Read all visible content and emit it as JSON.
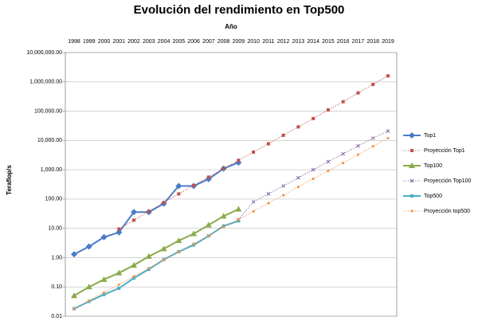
{
  "chart_data": {
    "type": "line",
    "title": "Evolución del rendimiento en Top500",
    "x_label": "Año",
    "y_label": "Teraflop/s",
    "categories": [
      "1998",
      "1999",
      "2000",
      "2001",
      "2002",
      "2003",
      "2004",
      "2005",
      "2006",
      "2007",
      "2008",
      "2009",
      "2010",
      "2011",
      "2012",
      "2013",
      "2014",
      "2015",
      "2016",
      "2017",
      "2018",
      "2019"
    ],
    "log_scale": true,
    "grid": true,
    "legend": "right",
    "ylim": [
      0.01,
      10000000
    ],
    "yticks": [
      0.01,
      {
        "value": 0.1,
        "label": "0.10"
      },
      {
        "value": 1,
        "label": "1.00"
      },
      {
        "value": 10,
        "label": "10.00"
      },
      {
        "value": 100,
        "label": "100.00"
      },
      {
        "value": 1000,
        "label": "1,000.00"
      },
      {
        "value": 10000,
        "label": "10,000.00"
      },
      {
        "value": 100000,
        "label": "100,000.00"
      },
      {
        "value": 1000000,
        "label": "1,000,000.00"
      },
      {
        "value": 10000000,
        "label": "10,000,000.00"
      }
    ],
    "series": [
      {
        "name": "Top1",
        "color": "#4a7bc8",
        "marker": "diamond",
        "dashed": false,
        "values": [
          1.3,
          2.4,
          5,
          7.3,
          36,
          36,
          70,
          280,
          280,
          480,
          1100,
          1760,
          null,
          null,
          null,
          null,
          null,
          null,
          null,
          null,
          null,
          null
        ]
      },
      {
        "name": "Proyección Top1",
        "color": "#c0504d",
        "marker": "square",
        "dashed": true,
        "values": [
          null,
          null,
          null,
          9.5,
          19,
          38,
          75,
          150,
          290,
          560,
          1100,
          2100,
          4000,
          7700,
          15000,
          29000,
          56000,
          110000,
          210000,
          420000,
          820000,
          1600000
        ]
      },
      {
        "name": "Top100",
        "color": "#8aaa4a",
        "marker": "triangle",
        "dashed": false,
        "values": [
          0.05,
          0.1,
          0.18,
          0.3,
          0.55,
          1.1,
          2,
          3.8,
          6.5,
          13,
          26,
          45,
          null,
          null,
          null,
          null,
          null,
          null,
          null,
          null,
          null,
          null
        ]
      },
      {
        "name": "Proyección Top100",
        "color": "#8064a2",
        "marker": "cross",
        "dashed": true,
        "values": [
          null,
          null,
          null,
          null,
          null,
          null,
          null,
          null,
          null,
          null,
          null,
          20,
          80,
          150,
          280,
          530,
          1000,
          1900,
          3500,
          6500,
          12000,
          21000
        ]
      },
      {
        "name": "Top500",
        "color": "#4bacc6",
        "marker": "square",
        "dashed": false,
        "values": [
          0.018,
          0.032,
          0.055,
          0.09,
          0.2,
          0.4,
          0.85,
          1.6,
          2.7,
          5.5,
          12,
          18,
          null,
          null,
          null,
          null,
          null,
          null,
          null,
          null,
          null,
          null
        ]
      },
      {
        "name": "Proyección top500",
        "color": "#f79646",
        "marker": "circle",
        "dashed": true,
        "values": [
          0.018,
          0.034,
          0.064,
          0.12,
          0.23,
          0.44,
          0.83,
          1.6,
          3,
          5.6,
          11,
          20,
          38,
          72,
          135,
          260,
          490,
          920,
          1700,
          3300,
          6300,
          12000
        ]
      }
    ]
  }
}
